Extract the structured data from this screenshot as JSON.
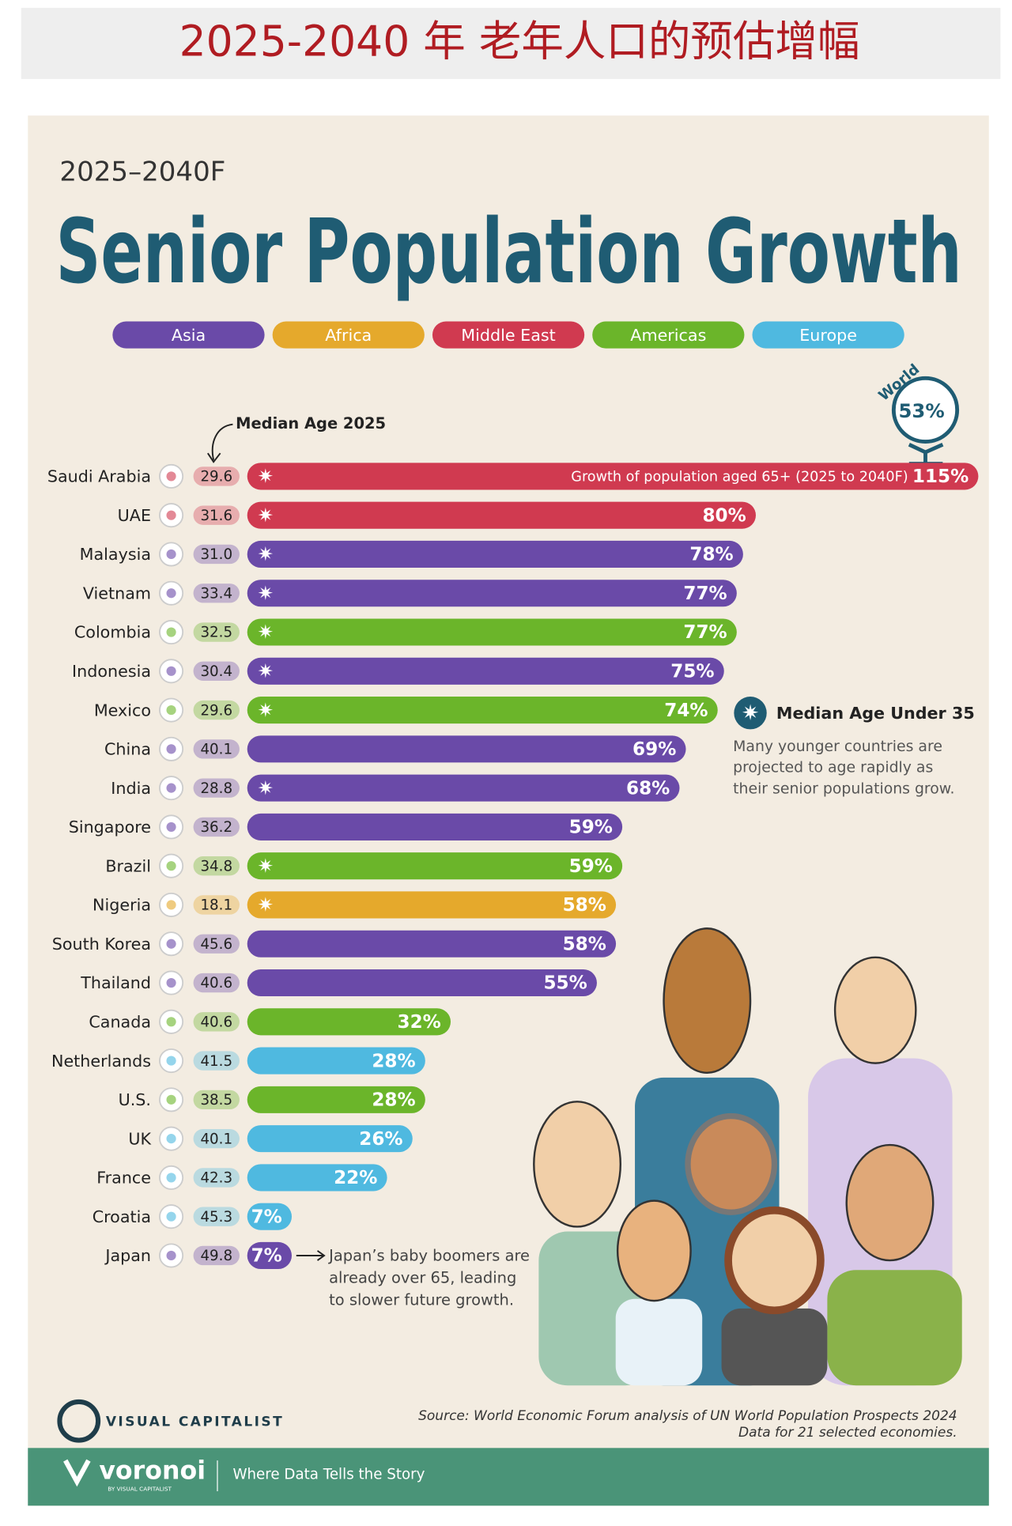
{
  "header": {
    "title": "2025-2040 年 老年人口的预估增幅"
  },
  "chart_data": {
    "type": "bar",
    "orientation": "horizontal",
    "period": "2025–2040F",
    "title": "Senior Population Growth",
    "legend": [
      {
        "name": "Asia",
        "color": "#6a4aa8"
      },
      {
        "name": "Africa",
        "color": "#e5a92c"
      },
      {
        "name": "Middle East",
        "color": "#d03a50"
      },
      {
        "name": "Americas",
        "color": "#6bb52a"
      },
      {
        "name": "Europe",
        "color": "#4fb9e0"
      }
    ],
    "world_name": "World",
    "world_value": 53,
    "world_label": "53%",
    "median_age_title": "Median Age 2025",
    "categories": [
      "Saudi Arabia",
      "UAE",
      "Malaysia",
      "Vietnam",
      "Colombia",
      "Indonesia",
      "Mexico",
      "China",
      "India",
      "Singapore",
      "Brazil",
      "Nigeria",
      "South Korea",
      "Thailand",
      "Canada",
      "Netherlands",
      "U.S.",
      "UK",
      "France",
      "Croatia",
      "Japan"
    ],
    "median_age": [
      29.6,
      31.6,
      {
        "value": 31,
        "label": "31.0"
      },
      33.4,
      32.5,
      30.4,
      29.6,
      40.1,
      28.8,
      36.2,
      34.8,
      18.1,
      45.6,
      40.6,
      40.6,
      41.5,
      38.5,
      40.1,
      42.3,
      45.3,
      49.8
    ],
    "median_age_under_35": [
      true,
      true,
      true,
      true,
      true,
      true,
      true,
      false,
      true,
      false,
      true,
      true,
      false,
      false,
      false,
      false,
      false,
      false,
      false,
      false,
      false
    ],
    "values": [
      115,
      80,
      78,
      77,
      77,
      75,
      74,
      69,
      68,
      59,
      59,
      58,
      58,
      55,
      32,
      28,
      28,
      26,
      22,
      7,
      7
    ],
    "value_labels": [
      "115%",
      "80%",
      "78%",
      "77%",
      "77%",
      "75%",
      "74%",
      "69%",
      "68%",
      "59%",
      "59%",
      "58%",
      "58%",
      "55%",
      "32%",
      "28%",
      "28%",
      "26%",
      "22%",
      "7%",
      "7%"
    ],
    "colors": [
      "#d03a50",
      "#d03a50",
      "#6a4aa8",
      "#6a4aa8",
      "#6bb52a",
      "#6a4aa8",
      "#6bb52a",
      "#6a4aa8",
      "#6a4aa8",
      "#6a4aa8",
      "#6bb52a",
      "#e5a92c",
      "#6a4aa8",
      "#6a4aa8",
      "#6bb52a",
      "#4fb9e0",
      "#6bb52a",
      "#4fb9e0",
      "#4fb9e0",
      "#4fb9e0",
      "#6a4aa8"
    ],
    "xlim": [
      0,
      115
    ],
    "bar_annotation": "Growth of population aged 65+ (2025 to 2040F)",
    "note_title": "Median Age Under 35",
    "note_lines": [
      "Many younger countries are",
      "projected to age rapidly as",
      "their senior populations grow."
    ],
    "japan_note": [
      "Japan’s baby boomers are",
      "already over 65, leading",
      "to slower future growth."
    ],
    "source": [
      "Source: World Economic Forum analysis of UN World Population Prospects 2024",
      "Data for 21 selected economies."
    ]
  },
  "footer": {
    "brand": "VISUAL CAPITALIST",
    "logo": "voronoi",
    "logo_sub": "BY VISUAL CAPITALIST",
    "tagline": "Where Data Tells the Story"
  }
}
